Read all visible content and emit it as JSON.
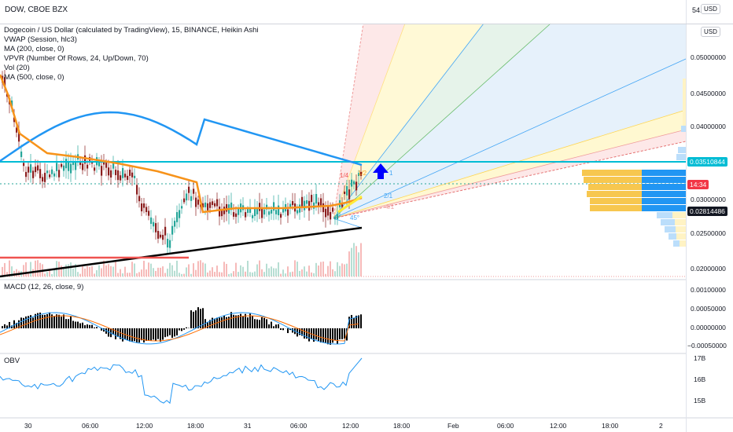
{
  "header": {
    "top_title": "DOW, CBOE BZX",
    "top_right_value": "54.",
    "usd_label": "USD"
  },
  "legend": {
    "main_title": "Dogecoin / US Dollar (calculated by TradingView), 15, BINANCE, Heikin Ashi",
    "indicators": [
      "VWAP (Session, hlc3)",
      "MA (200, close, 0)",
      "VPVR (Number Of Rows, 24, Up/Down, 70)",
      "Vol (20)",
      "MA (500, close, 0)"
    ]
  },
  "price_axis": {
    "labels": [
      "0.05000000",
      "0.04500000",
      "0.04000000",
      "0.03000000",
      "0.02500000",
      "0.02000000"
    ],
    "tags": {
      "resistance": "0.03510844",
      "countdown": "14:34",
      "last": "0.02814486"
    }
  },
  "fan_labels": {
    "one_four": "1/4",
    "one_two": "1/2",
    "one_one": "1",
    "two_one": "2/1",
    "four_one": "4/1",
    "angle": "45°"
  },
  "macd": {
    "title": "MACD (12, 26, close, 9)",
    "labels": [
      "0.00100000",
      "0.00050000",
      "0.00000000",
      "−0.00050000"
    ]
  },
  "obv": {
    "title": "OBV",
    "labels": [
      "17B",
      "16B",
      "15B"
    ]
  },
  "time_axis": [
    "30",
    "06:00",
    "12:00",
    "18:00",
    "31",
    "06:00",
    "12:00",
    "18:00",
    "Feb",
    "06:00",
    "12:00",
    "18:00",
    "2"
  ],
  "colors": {
    "ma200": "#2196f3",
    "ma500": "#000000",
    "vwap": "#f7931a",
    "resistance": "#00bcd4",
    "macd_line": "#2196f3",
    "signal_line": "#ff6d00",
    "hist_up": "#26a69a",
    "hist_down": "#ef5350",
    "arrow": "#0000ff",
    "tag_red": "#f23645",
    "tag_dark": "#131722",
    "tag_cyan": "#00bcd4"
  }
}
